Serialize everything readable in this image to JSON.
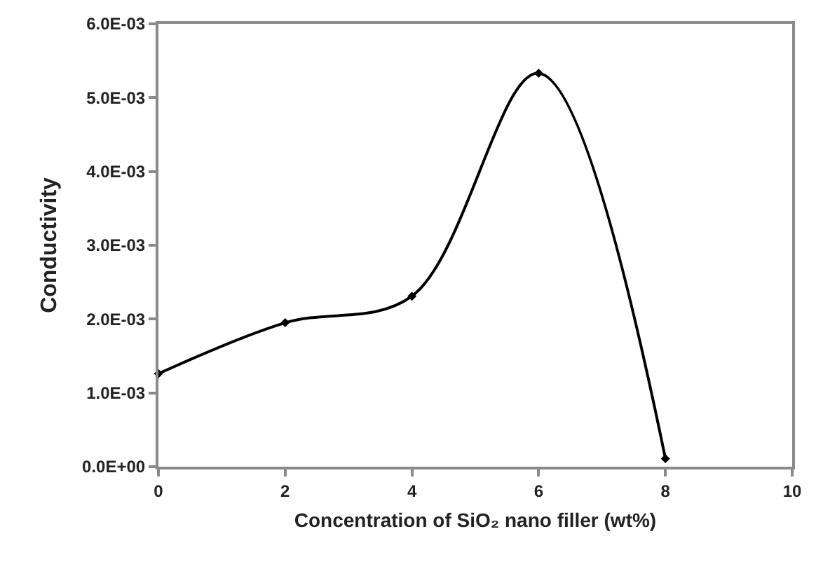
{
  "chart_data": {
    "type": "line",
    "xlabel": "Concentration of SiO₂ nano filler (wt%)",
    "ylabel": "Conductivity",
    "x": [
      0,
      2,
      4,
      6,
      8
    ],
    "series": [
      {
        "color": "#000000",
        "values": [
          0.00126,
          0.00195,
          0.00231,
          0.00533,
          0.00011
        ]
      }
    ],
    "xlim": [
      0,
      10
    ],
    "xticks": [
      0,
      2,
      4,
      6,
      8,
      10
    ],
    "ylim": [
      0,
      0.006
    ],
    "yticks": [
      {
        "value": 0,
        "label": "0.0E+00"
      },
      {
        "value": 0.001,
        "label": "1.0E-03"
      },
      {
        "value": 0.002,
        "label": "2.0E-03"
      },
      {
        "value": 0.003,
        "label": "3.0E-03"
      },
      {
        "value": 0.004,
        "label": "4.0E-03"
      },
      {
        "value": 0.005,
        "label": "5.0E-03"
      },
      {
        "value": 0.006,
        "label": "6.0E-03"
      }
    ],
    "grid": false,
    "marker": "diamond",
    "line_style": "solid"
  }
}
